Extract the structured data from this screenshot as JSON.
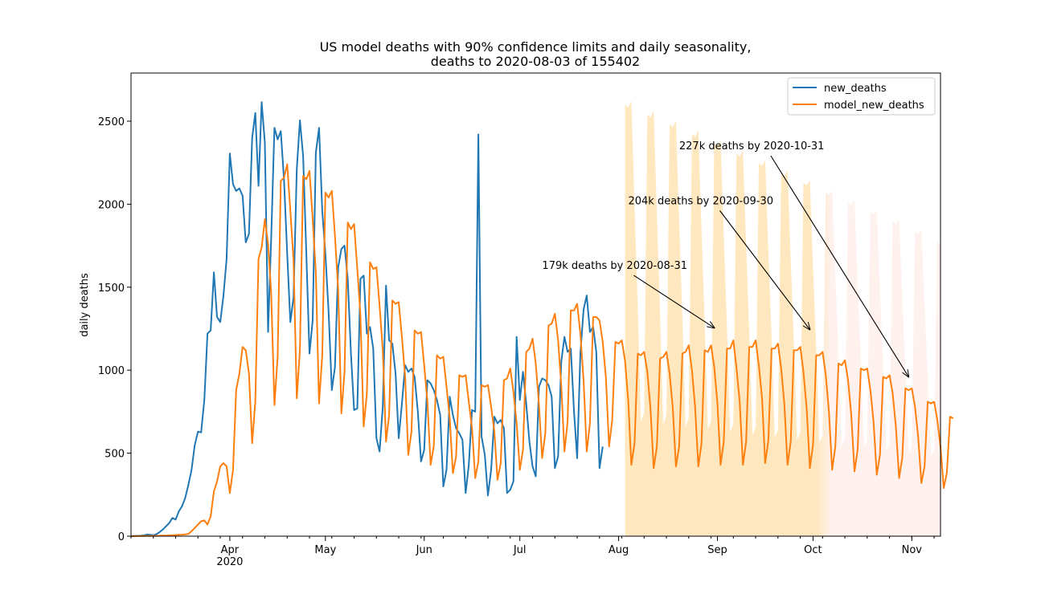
{
  "chart_data": {
    "type": "line",
    "title_line1": "US model deaths with 90% confidence limits and daily seasonality,",
    "title_line2": "deaths to 2020-08-03 of 155402",
    "ylabel": "daily deaths",
    "xlabel": "",
    "xlim": [
      "2020-03-01",
      "2020-11-10"
    ],
    "ylim": [
      0,
      2790
    ],
    "grid": false,
    "legend_position": "top-right",
    "y_ticks": [
      0,
      500,
      1000,
      1500,
      2000,
      2500
    ],
    "x_ticks": [
      {
        "date": "2020-04-01",
        "label": "Apr",
        "sublabel": "2020"
      },
      {
        "date": "2020-05-01",
        "label": "May",
        "sublabel": ""
      },
      {
        "date": "2020-06-01",
        "label": "Jun",
        "sublabel": ""
      },
      {
        "date": "2020-07-01",
        "label": "Jul",
        "sublabel": ""
      },
      {
        "date": "2020-08-01",
        "label": "Aug",
        "sublabel": ""
      },
      {
        "date": "2020-09-01",
        "label": "Sep",
        "sublabel": ""
      },
      {
        "date": "2020-10-01",
        "label": "Oct",
        "sublabel": ""
      },
      {
        "date": "2020-11-01",
        "label": "Nov",
        "sublabel": ""
      }
    ],
    "colors": {
      "new_deaths": "#1f77b4",
      "model_new_deaths": "#ff7f0e",
      "band_near": "#ffe8bf",
      "band_far": "#fff1ee"
    },
    "series": [
      {
        "name": "new_deaths",
        "start_date": "2020-03-01",
        "values": [
          0,
          1,
          2,
          3,
          5,
          10,
          8,
          6,
          12,
          25,
          40,
          60,
          80,
          110,
          100,
          150,
          180,
          230,
          310,
          400,
          550,
          630,
          625,
          820,
          1220,
          1240,
          1590,
          1320,
          1290,
          1450,
          1670,
          2305,
          2120,
          2080,
          2095,
          2050,
          1770,
          1820,
          2400,
          2550,
          2110,
          2615,
          2370,
          1230,
          1800,
          2460,
          2390,
          2440,
          2150,
          1700,
          1290,
          1440,
          2210,
          2505,
          2290,
          1700,
          1100,
          1300,
          2310,
          2460,
          1960,
          1700,
          1350,
          880,
          1020,
          1620,
          1730,
          1750,
          1550,
          1100,
          760,
          770,
          1550,
          1570,
          1220,
          1260,
          1130,
          590,
          510,
          780,
          1510,
          1180,
          1160,
          980,
          590,
          800,
          1030,
          990,
          1010,
          960,
          750,
          450,
          520,
          940,
          920,
          880,
          820,
          730,
          300,
          400,
          840,
          730,
          650,
          620,
          580,
          260,
          430,
          760,
          750,
          2420,
          600,
          490,
          245,
          400,
          720,
          680,
          700,
          650,
          260,
          280,
          330,
          1200,
          820,
          990,
          800,
          570,
          420,
          360,
          900,
          950,
          940,
          910,
          840,
          410,
          480,
          1050,
          1200,
          1110,
          1130,
          750,
          470,
          1100,
          1365,
          1450,
          1230,
          1260,
          1110,
          410,
          540
        ]
      },
      {
        "name": "model_new_deaths",
        "start_date": "2020-03-01",
        "values": [
          0,
          0,
          1,
          1,
          1,
          2,
          2,
          2,
          2,
          3,
          4,
          4,
          5,
          6,
          7,
          8,
          9,
          11,
          13,
          30,
          50,
          70,
          90,
          95,
          70,
          120,
          270,
          330,
          420,
          440,
          420,
          260,
          400,
          880,
          980,
          1140,
          1120,
          980,
          560,
          810,
          1670,
          1740,
          1910,
          1760,
          1460,
          790,
          1080,
          2140,
          2160,
          2240,
          1960,
          1660,
          830,
          1120,
          2170,
          2150,
          2200,
          1910,
          1590,
          800,
          1090,
          2070,
          2040,
          2080,
          1810,
          1480,
          740,
          990,
          1890,
          1850,
          1880,
          1610,
          1330,
          660,
          860,
          1650,
          1610,
          1620,
          1390,
          1120,
          570,
          730,
          1420,
          1400,
          1410,
          1200,
          960,
          490,
          630,
          1240,
          1220,
          1230,
          1030,
          810,
          430,
          540,
          1090,
          1070,
          1080,
          900,
          710,
          380,
          480,
          970,
          960,
          970,
          810,
          650,
          350,
          450,
          910,
          900,
          910,
          780,
          630,
          340,
          440,
          940,
          950,
          1010,
          870,
          680,
          400,
          520,
          1110,
          1130,
          1190,
          1040,
          790,
          470,
          620,
          1270,
          1280,
          1340,
          1180,
          910,
          510,
          690,
          1360,
          1360,
          1400,
          1220,
          940,
          510,
          680,
          1320,
          1320,
          1300,
          1170,
          960,
          540,
          700,
          1170,
          1160,
          1180,
          1060,
          820,
          430,
          560,
          1100,
          1090,
          1110,
          990,
          770,
          410,
          540,
          1070,
          1080,
          1110,
          980,
          770,
          420,
          540,
          1100,
          1110,
          1150,
          1000,
          780,
          420,
          560,
          1120,
          1110,
          1150,
          1020,
          800,
          430,
          570,
          1130,
          1130,
          1180,
          1010,
          810,
          430,
          570,
          1140,
          1140,
          1180,
          1030,
          830,
          440,
          580,
          1130,
          1130,
          1160,
          1010,
          800,
          430,
          570,
          1120,
          1120,
          1140,
          990,
          770,
          410,
          550,
          1090,
          1090,
          1110,
          970,
          750,
          400,
          540,
          1040,
          1030,
          1060,
          940,
          730,
          390,
          520,
          1010,
          1000,
          1010,
          880,
          690,
          370,
          490,
          960,
          950,
          970,
          860,
          660,
          350,
          470,
          890,
          880,
          890,
          780,
          600,
          320,
          420,
          810,
          800,
          810,
          700,
          540,
          290,
          380,
          720,
          710
        ]
      }
    ],
    "confidence_band": {
      "label": "90% confidence limits",
      "start_date": "2020-08-03",
      "period_days": 7,
      "upper_cycle": [
        2600,
        2590,
        2640,
        2000,
        1400,
        700,
        760
      ],
      "upper_scale_end": 0.68,
      "lower": 0,
      "gradient_end_date": "2020-08-14"
    },
    "annotations": [
      {
        "text": "179k deaths by 2020-08-31",
        "text_date": "2020-07-08",
        "text_value": 1610,
        "arrow_date": "2020-08-31",
        "arrow_value": 1255
      },
      {
        "text": "204k deaths by 2020-09-30",
        "text_date": "2020-08-04",
        "text_value": 2000,
        "arrow_date": "2020-09-30",
        "arrow_value": 1245
      },
      {
        "text": "227k deaths by 2020-10-31",
        "text_date": "2020-08-20",
        "text_value": 2330,
        "arrow_date": "2020-10-31",
        "arrow_value": 960
      }
    ]
  }
}
